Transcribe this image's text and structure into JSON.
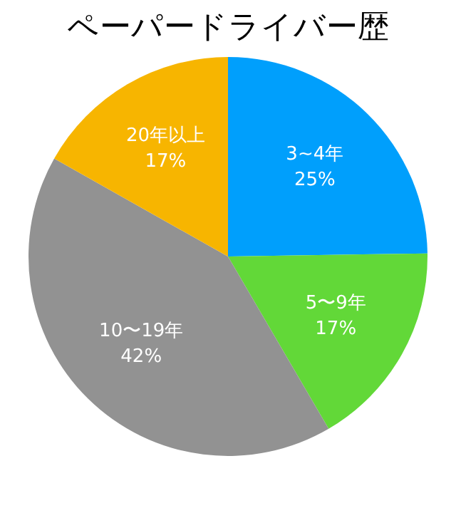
{
  "chart_data": {
    "type": "pie",
    "title": "ペーパードライバー歴",
    "categories": [
      "3~4年",
      "5〜9年",
      "10〜19年",
      "20年以上"
    ],
    "values": [
      25,
      17,
      42,
      17
    ],
    "value_labels": [
      "25%",
      "17%",
      "42%",
      "17%"
    ],
    "colors": [
      "#009ffc",
      "#62d838",
      "#929292",
      "#f7b500"
    ],
    "legend": false
  }
}
